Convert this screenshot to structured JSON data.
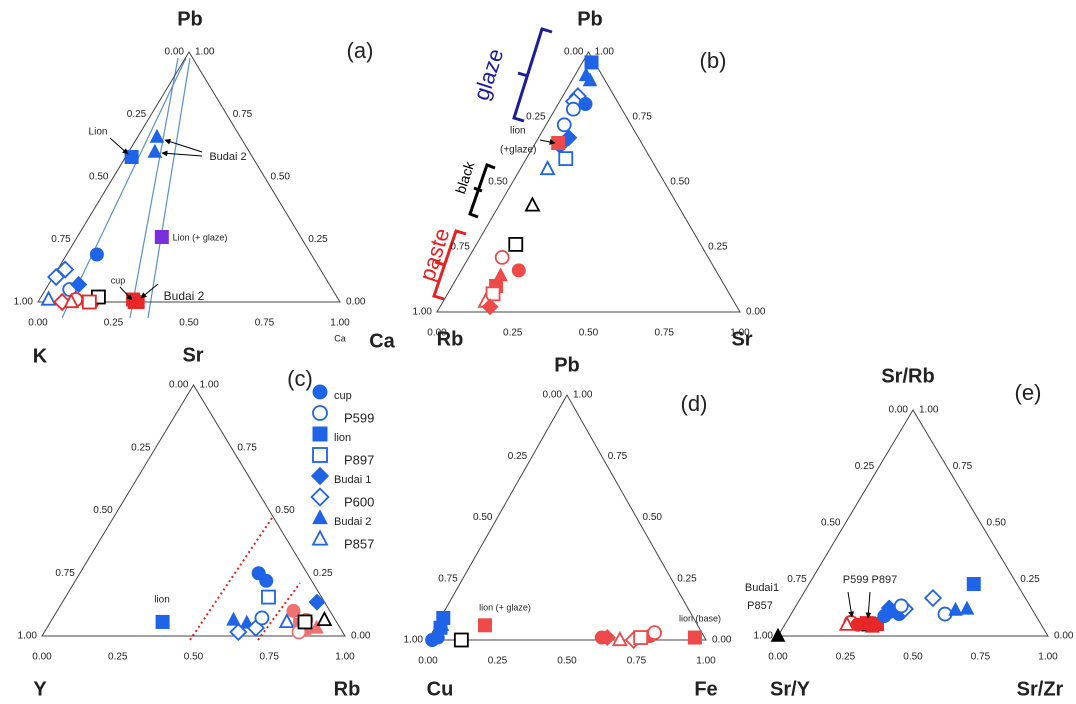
{
  "chart_data": [
    {
      "type": "ternary",
      "panel": "(a)",
      "top": "Pb",
      "left": "K",
      "right": "Ca",
      "ticks": [
        {
          "value": 0,
          "label": "0.00"
        },
        {
          "value": 0.25,
          "label": "0.25"
        },
        {
          "value": 0.5,
          "label": "0.50"
        },
        {
          "value": 0.75,
          "label": "0.75"
        },
        {
          "value": 1,
          "label": "1.00"
        }
      ],
      "annotations": [
        "Lion",
        "Budai 2",
        "Lion (+ glaze)",
        "cup",
        "Budai 2",
        "Ca"
      ],
      "series": [
        {
          "shape": "triangle",
          "filled": true,
          "color": "#1f63e6",
          "top": [
            0.66,
            0.6
          ],
          "right": [
            0.064,
            0.087
          ]
        },
        {
          "shape": "square",
          "filled": true,
          "color": "#1f63e6",
          "top": [
            0.58
          ],
          "right": [
            0.02
          ]
        },
        {
          "shape": "square",
          "filled": true,
          "color": "#7a2ee0",
          "top": [
            0.26
          ],
          "right": [
            0.28
          ]
        },
        {
          "shape": "circle",
          "filled": true,
          "color": "#1f63e6",
          "top": [
            0.19
          ],
          "right": [
            0.1
          ]
        },
        {
          "shape": "diamond",
          "filled": false,
          "color": "#1f63e6",
          "top": [
            0.13,
            0.1
          ],
          "right": [
            0.025,
            0.01
          ]
        },
        {
          "shape": "circle",
          "filled": false,
          "color": "#1f63e6",
          "top": [
            0.05
          ],
          "right": [
            0.08
          ]
        },
        {
          "shape": "diamond",
          "filled": true,
          "color": "#1f63e6",
          "top": [
            0.07
          ],
          "right": [
            0.1
          ]
        },
        {
          "shape": "triangle",
          "filled": false,
          "color": "#1f63e6",
          "top": [
            0.01
          ],
          "right": [
            0.03
          ]
        },
        {
          "shape": "diamond",
          "filled": false,
          "color": "#e82828",
          "top": [
            0.0
          ],
          "right": [
            0.08
          ]
        },
        {
          "shape": "circle",
          "filled": false,
          "color": "#e82828",
          "top": [
            0.01
          ],
          "right": [
            0.12
          ]
        },
        {
          "shape": "triangle",
          "filled": false,
          "color": "#e82828",
          "top": [
            0.0
          ],
          "right": [
            0.11
          ]
        },
        {
          "shape": "circle",
          "filled": true,
          "color": "#e82828",
          "top": [
            0.0,
            0.0
          ],
          "right": [
            0.165,
            0.18
          ]
        },
        {
          "shape": "square",
          "filled": false,
          "color": "#000000",
          "top": [
            0.02
          ],
          "right": [
            0.19
          ]
        },
        {
          "shape": "square",
          "filled": false,
          "color": "#e82828",
          "top": [
            0.0
          ],
          "right": [
            0.17
          ]
        },
        {
          "shape": "square",
          "filled": true,
          "color": "#e82828",
          "top": [
            0.01,
            0.0,
            0.0
          ],
          "right": [
            0.31,
            0.33,
            0.32
          ]
        }
      ]
    },
    {
      "type": "ternary",
      "panel": "(b)",
      "top": "Pb",
      "left": "Rb",
      "right": "Sr",
      "ticks": [
        {
          "value": 0,
          "label": "0.00"
        },
        {
          "value": 0.25,
          "label": "0.25"
        },
        {
          "value": 0.5,
          "label": "0.50"
        },
        {
          "value": 0.75,
          "label": "0.75"
        },
        {
          "value": 1,
          "label": "1.00"
        }
      ],
      "annotations": [
        "lion",
        "(+glaze)",
        "glaze",
        "black",
        "paste"
      ],
      "series": [
        {
          "shape": "square",
          "filled": true,
          "color": "#1f63e6",
          "top": [
            0.96
          ],
          "right": [
            0.03
          ]
        },
        {
          "shape": "triangle",
          "filled": true,
          "color": "#1f63e6",
          "top": [
            0.91,
            0.89
          ],
          "right": [
            0.037,
            0.06
          ]
        },
        {
          "shape": "diamond",
          "filled": false,
          "color": "#1f63e6",
          "top": [
            0.83,
            0.81
          ],
          "right": [
            0.05,
            0.047
          ]
        },
        {
          "shape": "circle",
          "filled": true,
          "color": "#1f63e6",
          "top": [
            0.8
          ],
          "right": [
            0.09
          ]
        },
        {
          "shape": "circle",
          "filled": false,
          "color": "#1f63e6",
          "top": [
            0.78,
            0.72
          ],
          "right": [
            0.06,
            0.06
          ]
        },
        {
          "shape": "diamond",
          "filled": true,
          "color": "#1f63e6",
          "top": [
            0.67,
            0.64
          ],
          "right": [
            0.1,
            0.086
          ]
        },
        {
          "shape": "square",
          "filled": true,
          "color": "#ef4a4a",
          "top": [
            0.65
          ],
          "right": [
            0.075
          ]
        },
        {
          "shape": "square",
          "filled": false,
          "color": "#1f63e6",
          "top": [
            0.59
          ],
          "right": [
            0.13
          ]
        },
        {
          "shape": "triangle",
          "filled": false,
          "color": "#1f63e6",
          "top": [
            0.55
          ],
          "right": [
            0.09
          ]
        },
        {
          "shape": "triangle",
          "filled": false,
          "color": "#000000",
          "top": [
            0.41
          ],
          "right": [
            0.11
          ]
        },
        {
          "shape": "square",
          "filled": false,
          "color": "#000000",
          "top": [
            0.26
          ],
          "right": [
            0.13
          ]
        },
        {
          "shape": "circle",
          "filled": false,
          "color": "#ef4a4a",
          "top": [
            0.21
          ],
          "right": [
            0.11
          ]
        },
        {
          "shape": "circle",
          "filled": true,
          "color": "#ef4a4a",
          "top": [
            0.16
          ],
          "right": [
            0.19
          ]
        },
        {
          "shape": "triangle",
          "filled": true,
          "color": "#ef4a4a",
          "top": [
            0.14
          ],
          "right": [
            0.14
          ]
        },
        {
          "shape": "square",
          "filled": true,
          "color": "#ef4a4a",
          "top": [
            0.1
          ],
          "right": [
            0.145
          ]
        },
        {
          "shape": "square",
          "filled": false,
          "color": "#ef4a4a",
          "top": [
            0.07
          ],
          "right": [
            0.15
          ]
        },
        {
          "shape": "triangle",
          "filled": false,
          "color": "#ef4a4a",
          "top": [
            0.04
          ],
          "right": [
            0.14
          ]
        },
        {
          "shape": "diamond",
          "filled": true,
          "color": "#ef4a4a",
          "top": [
            0.02
          ],
          "right": [
            0.165
          ]
        }
      ]
    },
    {
      "type": "ternary",
      "panel": "(c)",
      "top": "Sr",
      "left": "Y",
      "right": "Rb",
      "ticks": [
        {
          "value": 0,
          "label": "0.00"
        },
        {
          "value": 0.25,
          "label": "0.25"
        },
        {
          "value": 0.5,
          "label": "0.50"
        },
        {
          "value": 0.75,
          "label": "0.75"
        },
        {
          "value": 1,
          "label": "1.00"
        }
      ],
      "annotations": [
        "lion"
      ],
      "legend": [
        {
          "name": "cup",
          "shape": "circle",
          "filled": true,
          "color": "#1f63e6"
        },
        {
          "name": "P599",
          "shape": "circle",
          "filled": false,
          "color": "#1f63e6"
        },
        {
          "name": "lion",
          "shape": "square",
          "filled": true,
          "color": "#1f63e6"
        },
        {
          "name": "P897",
          "shape": "square",
          "filled": false,
          "color": "#1f63e6"
        },
        {
          "name": "Budai 1",
          "shape": "diamond",
          "filled": true,
          "color": "#1f63e6"
        },
        {
          "name": "P600",
          "shape": "diamond",
          "filled": false,
          "color": "#1f63e6"
        },
        {
          "name": "Budai 2",
          "shape": "triangle",
          "filled": true,
          "color": "#1f63e6"
        },
        {
          "name": "P857",
          "shape": "triangle",
          "filled": false,
          "color": "#1f63e6"
        }
      ],
      "series": [
        {
          "shape": "square",
          "filled": true,
          "color": "#1f63e6",
          "top": [
            0.056
          ],
          "right": [
            0.37
          ]
        },
        {
          "shape": "circle",
          "filled": true,
          "color": "#1f63e6",
          "top": [
            0.25,
            0.22
          ],
          "right": [
            0.59,
            0.63
          ]
        },
        {
          "shape": "square",
          "filled": false,
          "color": "#1f63e6",
          "top": [
            0.155
          ],
          "right": [
            0.67
          ]
        },
        {
          "shape": "diamond",
          "filled": true,
          "color": "#1f63e6",
          "top": [
            0.135
          ],
          "right": [
            0.84
          ]
        },
        {
          "shape": "triangle",
          "filled": true,
          "color": "#1f63e6",
          "top": [
            0.064,
            0.052
          ],
          "right": [
            0.6,
            0.65
          ]
        },
        {
          "shape": "diamond",
          "filled": false,
          "color": "#1f63e6",
          "top": [
            0.016,
            0.032
          ],
          "right": [
            0.64,
            0.69
          ]
        },
        {
          "shape": "circle",
          "filled": false,
          "color": "#1f63e6",
          "top": [
            0.072
          ],
          "right": [
            0.69
          ]
        },
        {
          "shape": "triangle",
          "filled": false,
          "color": "#1f63e6",
          "top": [
            0.056
          ],
          "right": [
            0.78
          ]
        },
        {
          "shape": "circle",
          "filled": true,
          "color": "#f07070",
          "top": [
            0.1,
            0.064
          ],
          "right": [
            0.78,
            0.84
          ]
        },
        {
          "shape": "square",
          "filled": true,
          "color": "#f07070",
          "top": [
            0.044,
            0.032
          ],
          "right": [
            0.83,
            0.85
          ]
        },
        {
          "shape": "triangle",
          "filled": true,
          "color": "#f07070",
          "top": [
            0.032
          ],
          "right": [
            0.89
          ]
        },
        {
          "shape": "circle",
          "filled": false,
          "color": "#f07070",
          "top": [
            0.016
          ],
          "right": [
            0.84
          ]
        },
        {
          "shape": "square",
          "filled": false,
          "color": "#000000",
          "top": [
            0.056
          ],
          "right": [
            0.84
          ]
        },
        {
          "shape": "triangle",
          "filled": false,
          "color": "#000000",
          "top": [
            0.064
          ],
          "right": [
            0.9
          ]
        }
      ]
    },
    {
      "type": "ternary",
      "panel": "(d)",
      "top": "Pb",
      "left": "Cu",
      "right": "Fe",
      "ticks": [
        {
          "value": 0,
          "label": "0.00"
        },
        {
          "value": 0.25,
          "label": "0.25"
        },
        {
          "value": 0.5,
          "label": "0.50"
        },
        {
          "value": 0.75,
          "label": "0.75"
        },
        {
          "value": 1,
          "label": "1.00"
        }
      ],
      "annotations": [
        "lion (+ glaze)",
        "lion (base)"
      ],
      "series": [
        {
          "shape": "square",
          "filled": true,
          "color": "#1f63e6",
          "top": [
            0.09,
            0.05
          ],
          "right": [
            0.01,
            0.02
          ]
        },
        {
          "shape": "triangle",
          "filled": true,
          "color": "#1f63e6",
          "top": [
            0.06
          ],
          "right": [
            0.02
          ]
        },
        {
          "shape": "circle",
          "filled": true,
          "color": "#1f63e6",
          "top": [
            0.01,
            0.0
          ],
          "right": [
            0.03,
            0.015
          ]
        },
        {
          "shape": "square",
          "filled": false,
          "color": "#000000",
          "top": [
            0.0
          ],
          "right": [
            0.12
          ]
        },
        {
          "shape": "square",
          "filled": true,
          "color": "#ef4a4a",
          "top": [
            0.06,
            0.01
          ],
          "right": [
            0.175,
            0.955
          ]
        },
        {
          "shape": "circle",
          "filled": true,
          "color": "#ef4a4a",
          "top": [
            0.01,
            0.016
          ],
          "right": [
            0.62,
            0.79
          ]
        },
        {
          "shape": "diamond",
          "filled": true,
          "color": "#ef4a4a",
          "top": [
            0.01
          ],
          "right": [
            0.64
          ]
        },
        {
          "shape": "diamond",
          "filled": false,
          "color": "#ef4a4a",
          "top": [
            0.0
          ],
          "right": [
            0.74
          ]
        },
        {
          "shape": "square",
          "filled": false,
          "color": "#ef4a4a",
          "top": [
            0.01
          ],
          "right": [
            0.76
          ]
        },
        {
          "shape": "circle",
          "filled": false,
          "color": "#ef4a4a",
          "top": [
            0.03
          ],
          "right": [
            0.8
          ]
        },
        {
          "shape": "triangle",
          "filled": false,
          "color": "#ef4a4a",
          "top": [
            0.0
          ],
          "right": [
            0.69
          ]
        }
      ]
    },
    {
      "type": "ternary",
      "panel": "(e)",
      "top": "Sr/Rb",
      "left": "Sr/Y",
      "right": "Sr/Zr",
      "ticks": [
        {
          "value": 0,
          "label": "0.00"
        },
        {
          "value": 0.25,
          "label": "0.25"
        },
        {
          "value": 0.5,
          "label": "0.50"
        },
        {
          "value": 0.75,
          "label": "0.75"
        },
        {
          "value": 1,
          "label": "1.00"
        }
      ],
      "annotations": [
        "Budai1",
        "P857",
        "P599 P897"
      ],
      "series": [
        {
          "shape": "triangle",
          "filled": true,
          "color": "#000000",
          "top": [
            0.0
          ],
          "right": [
            0.0
          ]
        },
        {
          "shape": "circle",
          "filled": false,
          "color": "#e82828",
          "top": [
            0.06
          ],
          "right": [
            0.24
          ]
        },
        {
          "shape": "triangle",
          "filled": false,
          "color": "#e82828",
          "top": [
            0.05
          ],
          "right": [
            0.23
          ]
        },
        {
          "shape": "circle",
          "filled": true,
          "color": "#e82828",
          "top": [
            0.05
          ],
          "right": [
            0.27
          ]
        },
        {
          "shape": "square",
          "filled": false,
          "color": "#000000",
          "top": [
            0.053
          ],
          "right": [
            0.31
          ]
        },
        {
          "shape": "square",
          "filled": true,
          "color": "#e82828",
          "top": [
            0.057,
            0.053
          ],
          "right": [
            0.3,
            0.34
          ]
        },
        {
          "shape": "triangle",
          "filled": true,
          "color": "#e82828",
          "top": [
            0.04
          ],
          "right": [
            0.33
          ]
        },
        {
          "shape": "circle",
          "filled": true,
          "color": "#1f63e6",
          "top": [
            0.088,
            0.106,
            0.097
          ],
          "right": [
            0.35,
            0.36,
            0.4
          ]
        },
        {
          "shape": "diamond",
          "filled": true,
          "color": "#1f63e6",
          "top": [
            0.124
          ],
          "right": [
            0.35
          ]
        },
        {
          "shape": "diamond",
          "filled": false,
          "color": "#1f63e6",
          "top": [
            0.12,
            0.168
          ],
          "right": [
            0.41,
            0.49
          ]
        },
        {
          "shape": "circle",
          "filled": false,
          "color": "#1f63e6",
          "top": [
            0.133,
            0.097
          ],
          "right": [
            0.39,
            0.57
          ]
        },
        {
          "shape": "triangle",
          "filled": true,
          "color": "#1f63e6",
          "top": [
            0.115,
            0.12
          ],
          "right": [
            0.6,
            0.64
          ]
        },
        {
          "shape": "square",
          "filled": true,
          "color": "#1f63e6",
          "top": [
            0.23
          ],
          "right": [
            0.61
          ]
        }
      ]
    }
  ]
}
